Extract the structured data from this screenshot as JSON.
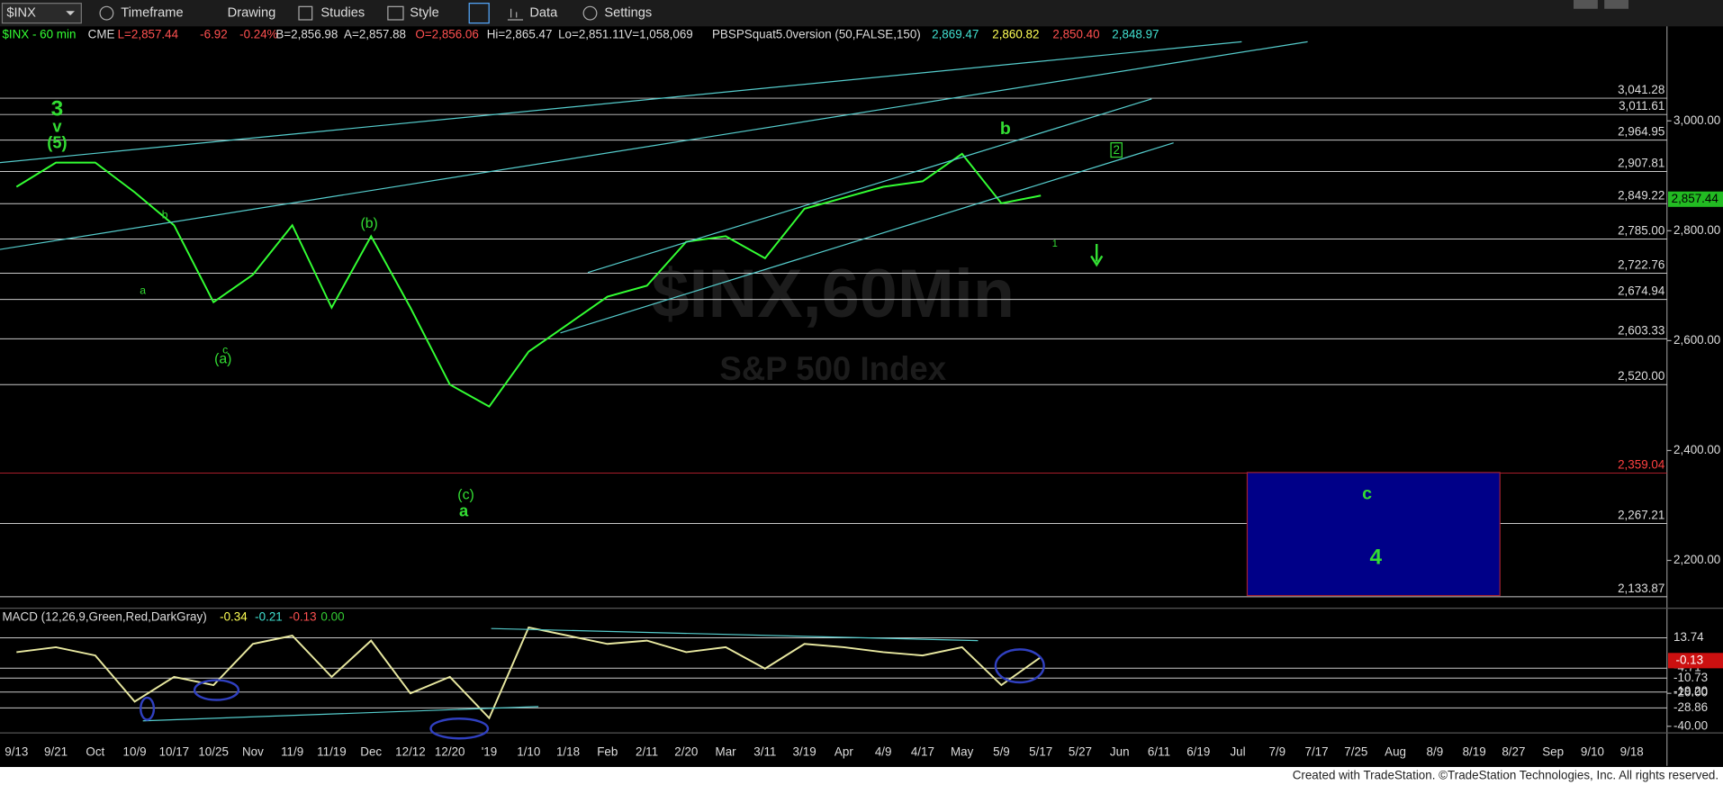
{
  "toolbar": {
    "symbol": "$INX",
    "menus": [
      "Timeframe",
      "Drawing",
      "Studies",
      "Style",
      "Data",
      "Settings"
    ]
  },
  "header": [
    "$INX - 60 min",
    "CME",
    "L=2,857.44",
    "-6.92",
    "-0.24%",
    "B=2,856.98",
    "A=2,857.88",
    "O=2,856.06",
    "Hi=2,865.47",
    "Lo=2,851.11",
    "V=1,058,069",
    "PBSPSquat5.0version (50,FALSE,150)",
    "2,869.47",
    "2,860.82",
    "2,850.40",
    "2,848.97"
  ],
  "watermark": {
    "symbol": "$INX,60Min",
    "name": "S&P 500 Index"
  },
  "chart_data": [
    {
      "type": "line",
      "categories": [
        "9/13",
        "9/21",
        "Oct",
        "10/9",
        "10/17",
        "10/25",
        "Nov",
        "11/9",
        "11/19",
        "Dec",
        "12/12",
        "12/20",
        "'19",
        "1/10",
        "1/18",
        "Feb",
        "2/11",
        "2/20",
        "Mar",
        "3/11",
        "3/19",
        "Apr",
        "4/9",
        "4/17",
        "May",
        "5/9",
        "5/17",
        "5/27",
        "Jun",
        "6/11",
        "6/19",
        "Jul",
        "7/9",
        "7/17",
        "7/25",
        "Aug",
        "8/9",
        "8/19",
        "8/27",
        "Sep",
        "9/10",
        "9/18"
      ],
      "series": [
        {
          "name": "$INX",
          "color": "#33ff33",
          "values": [
            2880,
            2924,
            2924,
            2870,
            2810,
            2670,
            2720,
            2810,
            2660,
            2790,
            2660,
            2520,
            2480,
            2580,
            2630,
            2680,
            2700,
            2780,
            2790,
            2750,
            2840,
            2860,
            2880,
            2890,
            2940,
            2850,
            2864,
            null,
            null,
            null,
            null,
            null,
            null,
            null,
            null,
            null,
            null,
            null,
            null,
            null,
            null,
            null
          ]
        }
      ],
      "ylim": [
        2115,
        3170
      ],
      "yticks": [
        {
          "value": 3000,
          "label": "3,000.00"
        },
        {
          "value": 2800,
          "label": "2,800.00"
        },
        {
          "value": 2600,
          "label": "2,600.00"
        },
        {
          "value": 2400,
          "label": "2,400.00"
        },
        {
          "value": 2200,
          "label": "2,200.00"
        }
      ],
      "levels": [
        {
          "value": 3041.28,
          "label": "3,041.28"
        },
        {
          "value": 3011.61,
          "label": "3,011.61"
        },
        {
          "value": 2964.95,
          "label": "2,964.95"
        },
        {
          "value": 2907.81,
          "label": "2,907.81"
        },
        {
          "value": 2849.22,
          "label": "2,849.22"
        },
        {
          "value": 2785.0,
          "label": "2,785.00"
        },
        {
          "value": 2722.76,
          "label": "2,722.76"
        },
        {
          "value": 2674.94,
          "label": "2,674.94"
        },
        {
          "value": 2603.33,
          "label": "2,603.33"
        },
        {
          "value": 2520.0,
          "label": "2,520.00"
        },
        {
          "value": 2359.04,
          "label": "2,359.04"
        },
        {
          "value": 2267.21,
          "label": "2,267.21"
        },
        {
          "value": 2133.87,
          "label": "2,133.87"
        }
      ],
      "last_price": {
        "value": 2857.44,
        "label": "2,857.44"
      },
      "annotations": [
        "3",
        "v",
        "(5)",
        "b",
        "a",
        "c",
        "(a)",
        "(b)",
        "(c)",
        "a",
        "b",
        "2",
        "1",
        "c",
        "4"
      ]
    },
    {
      "type": "line",
      "title": "MACD (12,26,9,Green,Red,DarkGray)",
      "readings": [
        "-0.34",
        "-0.21",
        "-0.13",
        "0.00"
      ],
      "categories": [
        "9/13",
        "9/21",
        "Oct",
        "10/9",
        "10/17",
        "10/25",
        "Nov",
        "11/9",
        "11/19",
        "Dec",
        "12/12",
        "12/20",
        "'19",
        "1/10",
        "1/18",
        "Feb",
        "2/11",
        "2/20",
        "Mar",
        "3/11",
        "3/19",
        "Apr",
        "4/9",
        "4/17",
        "May",
        "5/9",
        "5/17",
        "5/27",
        "Jun",
        "6/11",
        "6/19",
        "Jul",
        "7/9",
        "7/17",
        "7/25",
        "Aug",
        "8/9",
        "8/19",
        "8/27",
        "Sep",
        "9/10",
        "9/18"
      ],
      "series": [
        {
          "color": "#e8e8a0",
          "values": [
            5,
            8,
            3,
            -25,
            -10,
            -15,
            10,
            15,
            -10,
            12,
            -20,
            -10,
            -35,
            20,
            15,
            10,
            12,
            5,
            8,
            -5,
            10,
            8,
            5,
            3,
            8,
            -15,
            2,
            null,
            null,
            null,
            null,
            null,
            null,
            null,
            null,
            null,
            null,
            null,
            null,
            null,
            null,
            null
          ]
        }
      ],
      "ylim": [
        -42.7,
        30.7
      ],
      "yticks": [
        {
          "value": -20,
          "label": "-20.00"
        },
        {
          "value": -40,
          "label": "-40.00"
        }
      ],
      "levels": [
        13.74,
        -4.71,
        -10.73,
        {
          "value": -19.2,
          "label": "-19.20"
        },
        -28.86
      ],
      "last_value": -0.13
    }
  ],
  "footer": "Created with TradeStation. ©TradeStation Technologies, Inc. All rights reserved."
}
